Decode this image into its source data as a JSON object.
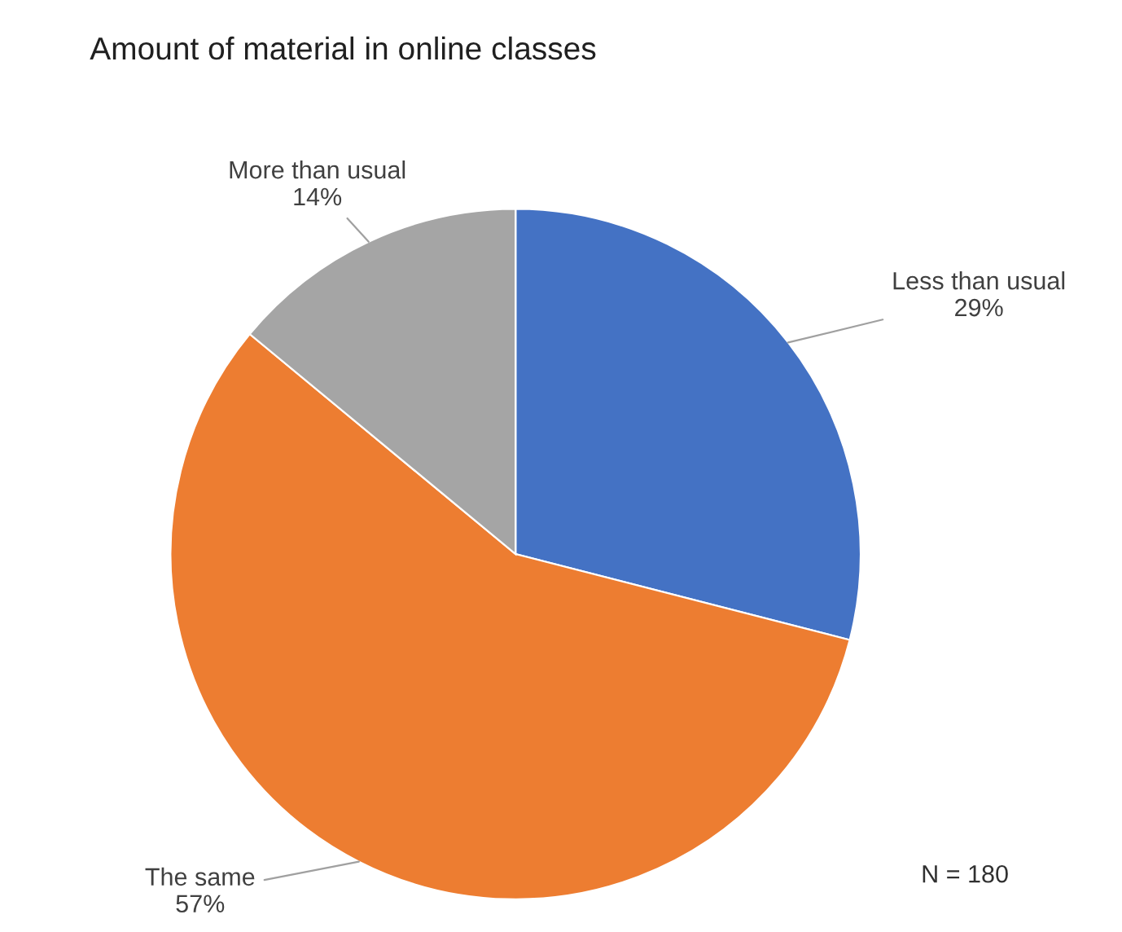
{
  "chart_data": {
    "type": "pie",
    "title": "Amount of material in online classes",
    "categories": [
      "Less than usual",
      "The same",
      "More than usual"
    ],
    "values": [
      29,
      57,
      14
    ],
    "colors": [
      "#4472c4",
      "#ed7d31",
      "#a5a5a5"
    ],
    "value_labels": [
      "29%",
      "57%",
      "14%"
    ],
    "legend": false,
    "annotations": [
      "N = 180"
    ]
  }
}
